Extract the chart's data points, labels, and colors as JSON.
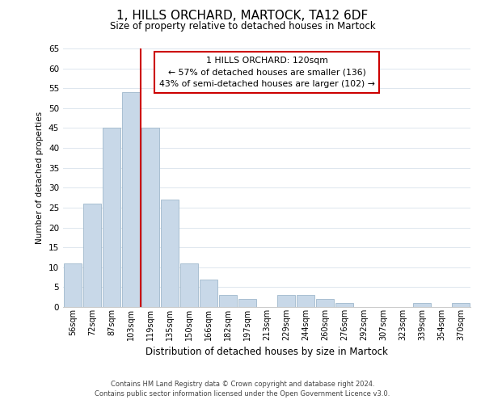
{
  "title": "1, HILLS ORCHARD, MARTOCK, TA12 6DF",
  "subtitle": "Size of property relative to detached houses in Martock",
  "xlabel": "Distribution of detached houses by size in Martock",
  "ylabel": "Number of detached properties",
  "bin_labels": [
    "56sqm",
    "72sqm",
    "87sqm",
    "103sqm",
    "119sqm",
    "135sqm",
    "150sqm",
    "166sqm",
    "182sqm",
    "197sqm",
    "213sqm",
    "229sqm",
    "244sqm",
    "260sqm",
    "276sqm",
    "292sqm",
    "307sqm",
    "323sqm",
    "339sqm",
    "354sqm",
    "370sqm"
  ],
  "bar_values": [
    11,
    26,
    45,
    54,
    45,
    27,
    11,
    7,
    3,
    2,
    0,
    3,
    3,
    2,
    1,
    0,
    0,
    0,
    1,
    0,
    1
  ],
  "bar_color": "#c8d8e8",
  "bar_edge_color": "#a0b8cc",
  "vline_color": "#cc0000",
  "vline_x": 4.5,
  "ylim": [
    0,
    65
  ],
  "yticks": [
    0,
    5,
    10,
    15,
    20,
    25,
    30,
    35,
    40,
    45,
    50,
    55,
    60,
    65
  ],
  "annotation_title": "1 HILLS ORCHARD: 120sqm",
  "annotation_line1": "← 57% of detached houses are smaller (136)",
  "annotation_line2": "43% of semi-detached houses are larger (102) →",
  "annotation_box_color": "#ffffff",
  "annotation_box_edge": "#cc0000",
  "footer_line1": "Contains HM Land Registry data © Crown copyright and database right 2024.",
  "footer_line2": "Contains public sector information licensed under the Open Government Licence v3.0.",
  "background_color": "#ffffff",
  "grid_color": "#dde6ee"
}
